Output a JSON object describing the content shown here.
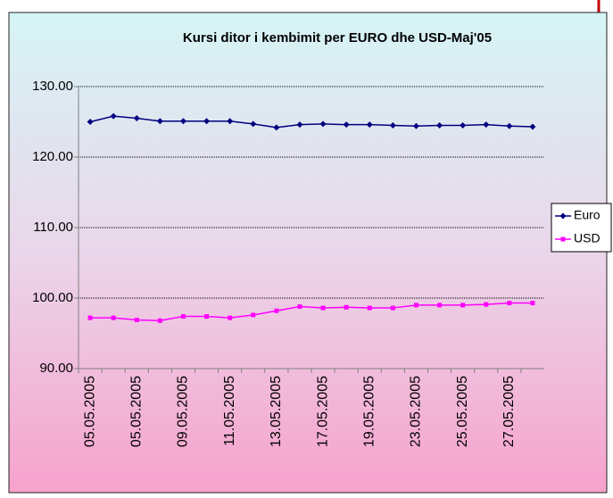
{
  "chart_data": {
    "type": "line",
    "title": "Kursi ditor i kembimit per EURO dhe USD-Maj'05",
    "categories": [
      "05.05.2005",
      null,
      "05.05.2005",
      null,
      "09.05.2005",
      null,
      "11.05.2005",
      null,
      "13.05.2005",
      null,
      "17.05.2005",
      null,
      "19.05.2005",
      null,
      "23.05.2005",
      null,
      "25.05.2005",
      null,
      "27.05.2005",
      null
    ],
    "series": [
      {
        "name": "Euro",
        "color": "#000080",
        "values": [
          125.0,
          125.8,
          125.5,
          125.1,
          125.1,
          125.1,
          125.1,
          124.7,
          124.2,
          124.6,
          124.7,
          124.6,
          124.6,
          124.5,
          124.4,
          124.5,
          124.5,
          124.6,
          124.4,
          124.3
        ]
      },
      {
        "name": "USD",
        "color": "#ff00ff",
        "values": [
          97.2,
          97.2,
          96.9,
          96.8,
          97.4,
          97.4,
          97.2,
          97.6,
          98.2,
          98.8,
          98.6,
          98.7,
          98.6,
          98.6,
          99.0,
          99.0,
          99.0,
          99.1,
          99.3,
          99.3
        ]
      }
    ],
    "ylim": [
      90,
      130
    ],
    "yticks": [
      {
        "value": 90,
        "label": "90.00"
      },
      {
        "value": 100,
        "label": "100.00"
      },
      {
        "value": 110,
        "label": "110.00"
      },
      {
        "value": 120,
        "label": "120.00"
      },
      {
        "value": 130,
        "label": "130.00"
      }
    ],
    "grid": true,
    "legend": "right"
  }
}
